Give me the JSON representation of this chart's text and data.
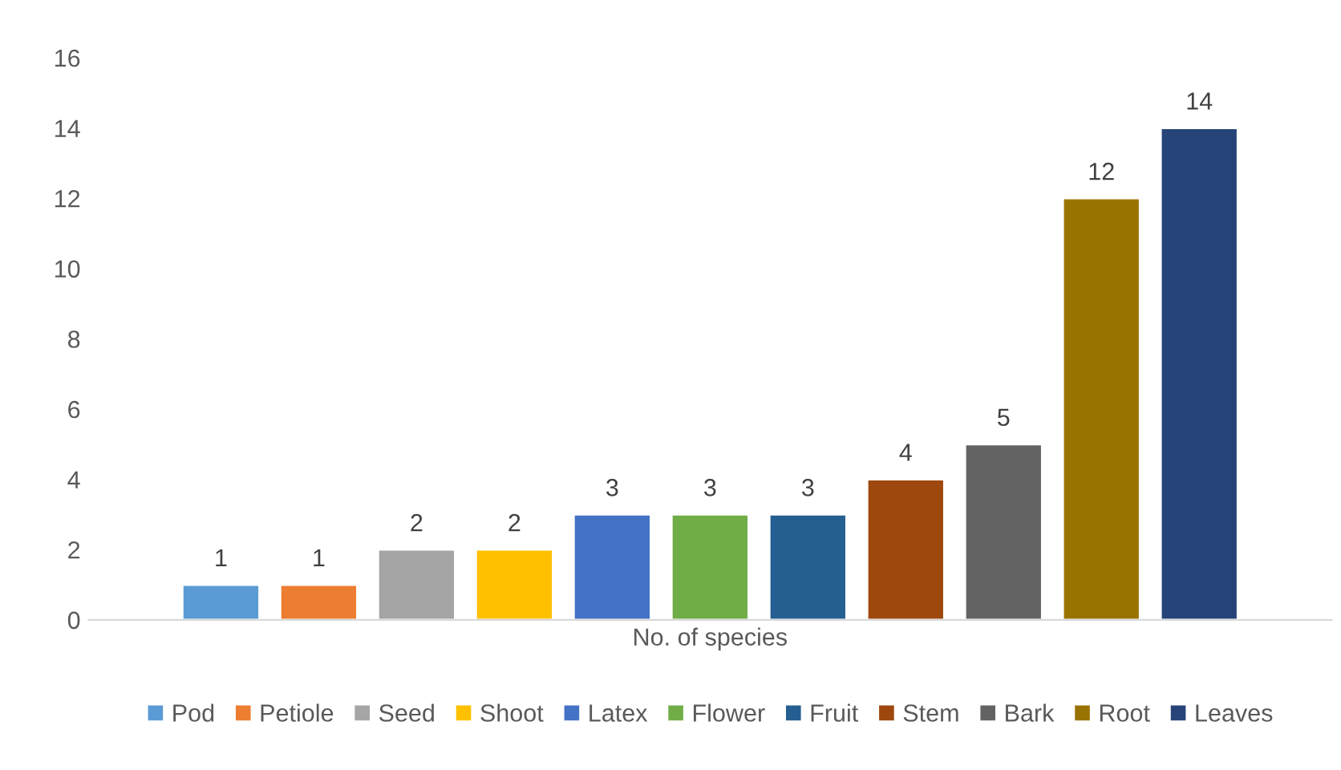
{
  "chart_data": {
    "type": "bar",
    "categories": [
      "No. of species"
    ],
    "series": [
      {
        "name": "Pod",
        "color": "#5b9bd5",
        "values": [
          1
        ]
      },
      {
        "name": "Petiole",
        "color": "#ed7d31",
        "values": [
          1
        ]
      },
      {
        "name": "Seed",
        "color": "#a5a5a5",
        "values": [
          2
        ]
      },
      {
        "name": "Shoot",
        "color": "#ffc000",
        "values": [
          2
        ]
      },
      {
        "name": "Latex",
        "color": "#4472c4",
        "values": [
          3
        ]
      },
      {
        "name": "Flower",
        "color": "#70ad47",
        "values": [
          3
        ]
      },
      {
        "name": "Fruit",
        "color": "#255e91",
        "values": [
          3
        ]
      },
      {
        "name": "Stem",
        "color": "#9e480e",
        "values": [
          4
        ]
      },
      {
        "name": "Bark",
        "color": "#636363",
        "values": [
          5
        ]
      },
      {
        "name": "Root",
        "color": "#997300",
        "values": [
          12
        ]
      },
      {
        "name": "Leaves",
        "color": "#264478",
        "values": [
          14
        ]
      }
    ],
    "ylim": [
      0,
      16
    ],
    "yticks": [
      0,
      2,
      4,
      6,
      8,
      10,
      12,
      14,
      16
    ],
    "grid": false,
    "legend": "bottom",
    "data_labels": true
  }
}
